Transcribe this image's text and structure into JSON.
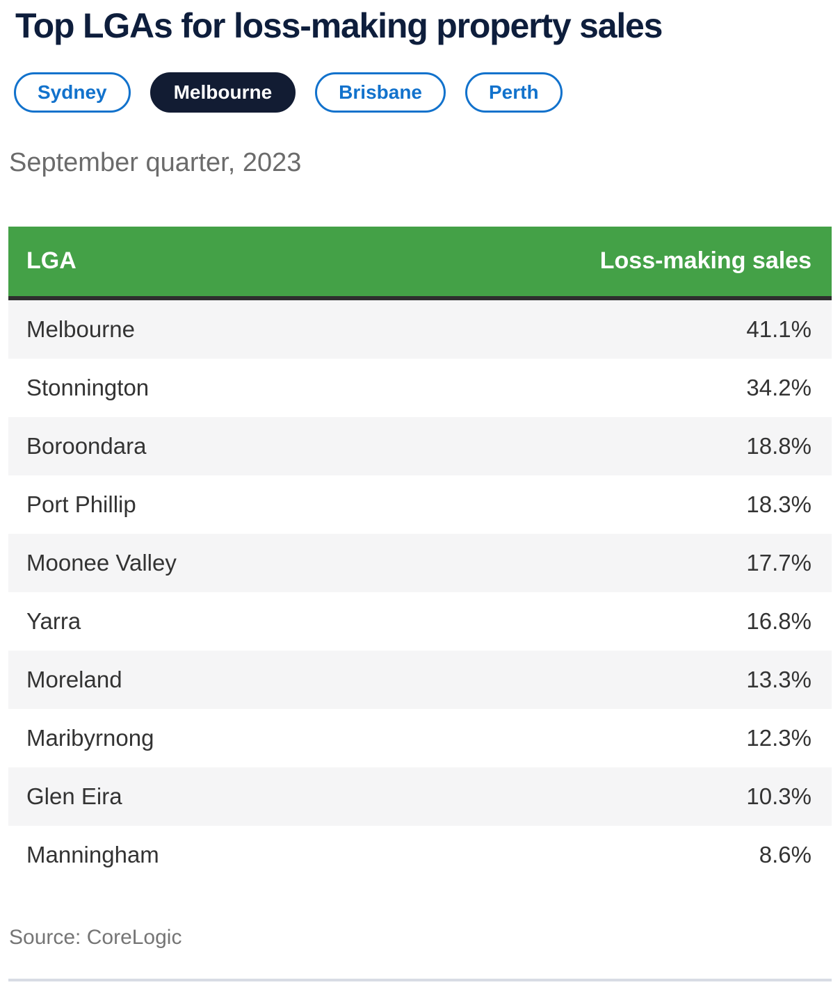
{
  "title": "Top LGAs for loss-making property sales",
  "tabs": [
    {
      "label": "Sydney",
      "active": false
    },
    {
      "label": "Melbourne",
      "active": true
    },
    {
      "label": "Brisbane",
      "active": false
    },
    {
      "label": "Perth",
      "active": false
    }
  ],
  "subtitle": "September quarter, 2023",
  "table": {
    "col_lga": "LGA",
    "col_value": "Loss-making sales",
    "rows": [
      {
        "lga": "Melbourne",
        "value": "41.1%"
      },
      {
        "lga": "Stonnington",
        "value": "34.2%"
      },
      {
        "lga": "Boroondara",
        "value": "18.8%"
      },
      {
        "lga": "Port Phillip",
        "value": "18.3%"
      },
      {
        "lga": "Moonee Valley",
        "value": "17.7%"
      },
      {
        "lga": "Yarra",
        "value": "16.8%"
      },
      {
        "lga": "Moreland",
        "value": "13.3%"
      },
      {
        "lga": "Maribyrnong",
        "value": "12.3%"
      },
      {
        "lga": "Glen Eira",
        "value": "10.3%"
      },
      {
        "lga": "Manningham",
        "value": "8.6%"
      }
    ]
  },
  "source": "Source: CoreLogic",
  "colors": {
    "header_green": "#44a147",
    "header_border_dark": "#2e2e2e",
    "accent_blue": "#1272cc",
    "active_tab_navy": "#121c33",
    "title_navy": "#0e1e3c",
    "row_alt_bg": "#f5f5f6",
    "row_text": "#333333",
    "subtitle_gray": "#6b6b6b",
    "source_gray": "#757575",
    "bottom_rule": "#d8dce4"
  },
  "chart_data": {
    "type": "table",
    "title": "Top LGAs for loss-making property sales",
    "subtitle": "September quarter, 2023",
    "tabs": [
      "Sydney",
      "Melbourne",
      "Brisbane",
      "Perth"
    ],
    "active_tab": "Melbourne",
    "columns": [
      "LGA",
      "Loss-making sales"
    ],
    "categories": [
      "Melbourne",
      "Stonnington",
      "Boroondara",
      "Port Phillip",
      "Moonee Valley",
      "Yarra",
      "Moreland",
      "Maribyrnong",
      "Glen Eira",
      "Manningham"
    ],
    "values": [
      41.1,
      34.2,
      18.8,
      18.3,
      17.7,
      16.8,
      13.3,
      12.3,
      10.3,
      8.6
    ],
    "unit": "%",
    "source": "Source: CoreLogic"
  }
}
